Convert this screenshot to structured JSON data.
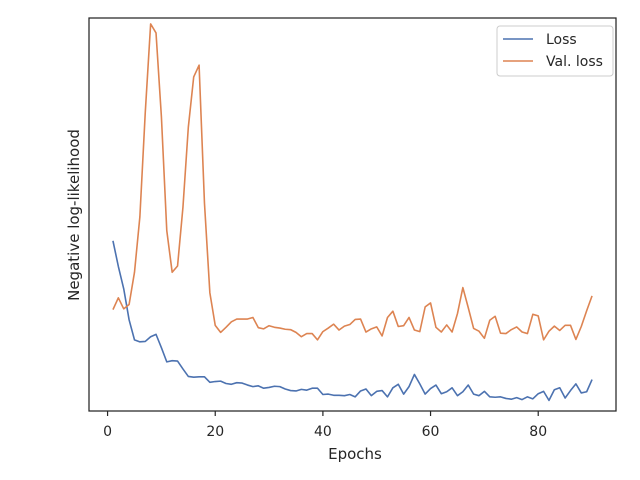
{
  "chart_data": {
    "type": "line",
    "title": "",
    "xlabel": "Epochs",
    "ylabel": "Negative log-likelihood",
    "xlim": [
      -3.45,
      94.45
    ],
    "ylim": [
      0,
      1
    ],
    "xticks": [
      0,
      20,
      40,
      60,
      80
    ],
    "yticks_visible": false,
    "grid": false,
    "legend": "top-right",
    "x": [
      1,
      2,
      3,
      4,
      5,
      6,
      7,
      8,
      9,
      10,
      11,
      12,
      13,
      14,
      15,
      16,
      17,
      18,
      19,
      20,
      21,
      22,
      23,
      24,
      25,
      26,
      27,
      28,
      29,
      30,
      31,
      32,
      33,
      34,
      35,
      36,
      37,
      38,
      39,
      40,
      41,
      42,
      43,
      44,
      45,
      46,
      47,
      48,
      49,
      50,
      51,
      52,
      53,
      54,
      55,
      56,
      57,
      58,
      59,
      60,
      61,
      62,
      63,
      64,
      65,
      66,
      67,
      68,
      69,
      70,
      71,
      72,
      73,
      74,
      75,
      76,
      77,
      78,
      79,
      80,
      81,
      82,
      83,
      84,
      85,
      86,
      87,
      88,
      89,
      90
    ],
    "series": [
      {
        "name": "Loss",
        "color": "#4c72b0",
        "values": [
          0.433,
          0.368,
          0.311,
          0.232,
          0.181,
          0.176,
          0.177,
          0.189,
          0.195,
          0.161,
          0.125,
          0.128,
          0.127,
          0.107,
          0.088,
          0.086,
          0.087,
          0.087,
          0.073,
          0.075,
          0.076,
          0.07,
          0.068,
          0.072,
          0.071,
          0.066,
          0.062,
          0.064,
          0.058,
          0.06,
          0.063,
          0.062,
          0.056,
          0.052,
          0.051,
          0.055,
          0.053,
          0.058,
          0.058,
          0.042,
          0.043,
          0.04,
          0.04,
          0.039,
          0.042,
          0.036,
          0.051,
          0.056,
          0.039,
          0.05,
          0.052,
          0.036,
          0.059,
          0.068,
          0.043,
          0.062,
          0.093,
          0.069,
          0.043,
          0.057,
          0.066,
          0.044,
          0.049,
          0.059,
          0.039,
          0.049,
          0.066,
          0.043,
          0.039,
          0.05,
          0.036,
          0.035,
          0.036,
          0.032,
          0.03,
          0.034,
          0.029,
          0.036,
          0.031,
          0.044,
          0.05,
          0.027,
          0.054,
          0.059,
          0.033,
          0.052,
          0.069,
          0.046,
          0.049,
          0.08
        ]
      },
      {
        "name": "Val. loss",
        "color": "#dd8452",
        "values": [
          0.258,
          0.288,
          0.26,
          0.271,
          0.353,
          0.494,
          0.759,
          0.985,
          0.962,
          0.749,
          0.459,
          0.353,
          0.369,
          0.518,
          0.722,
          0.85,
          0.88,
          0.529,
          0.301,
          0.218,
          0.2,
          0.213,
          0.227,
          0.234,
          0.234,
          0.234,
          0.238,
          0.212,
          0.209,
          0.217,
          0.213,
          0.211,
          0.208,
          0.207,
          0.2,
          0.189,
          0.197,
          0.197,
          0.181,
          0.202,
          0.211,
          0.221,
          0.206,
          0.216,
          0.22,
          0.233,
          0.234,
          0.201,
          0.209,
          0.214,
          0.191,
          0.238,
          0.254,
          0.215,
          0.217,
          0.238,
          0.206,
          0.202,
          0.265,
          0.275,
          0.213,
          0.201,
          0.219,
          0.201,
          0.248,
          0.314,
          0.263,
          0.21,
          0.203,
          0.185,
          0.231,
          0.241,
          0.198,
          0.197,
          0.207,
          0.214,
          0.201,
          0.197,
          0.246,
          0.242,
          0.181,
          0.203,
          0.216,
          0.205,
          0.218,
          0.218,
          0.182,
          0.215,
          0.255,
          0.293
        ]
      }
    ]
  }
}
